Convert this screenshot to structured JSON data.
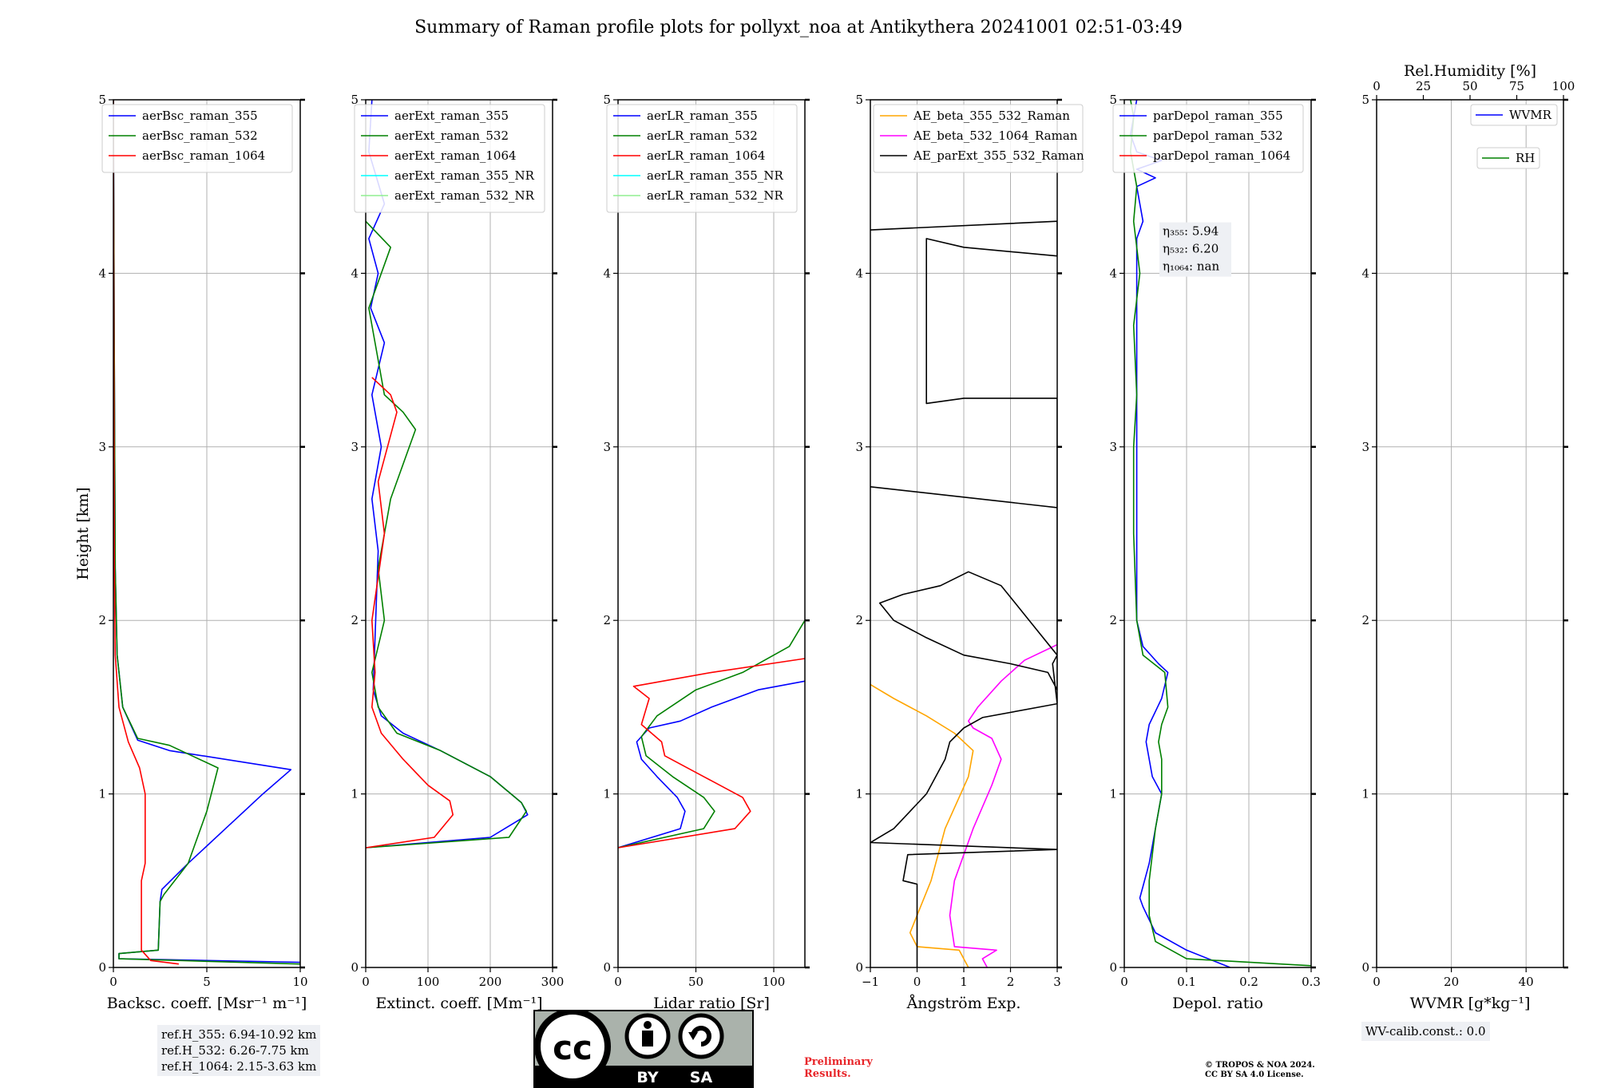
{
  "figure_title": "Summary of Raman profile plots for pollyxt_noa at Antikythera 20241001 02:51-03:49",
  "ref_heights": [
    "ref.H_355: 6.94-10.92 km",
    "ref.H_532: 6.26-7.75 km",
    "ref.H_1064: 2.15-3.63 km"
  ],
  "wv_calib": "WV-calib.const.: 0.0",
  "preliminary": [
    "Preliminary",
    "Results."
  ],
  "copyright": [
    "© TROPOS & NOA 2024.",
    "CC BY SA 4.0 License."
  ],
  "license_badge": {
    "left": "BY",
    "right": "SA",
    "icon": "creative-commons-icon"
  },
  "colors": {
    "blue": "#0000ff",
    "green": "#008000",
    "red": "#ff0000",
    "cyan": "#00ffff",
    "lightgreen": "#90ee90",
    "orange": "#ffa500",
    "magenta": "#ff00ff",
    "black": "#000000"
  },
  "chart_data": [
    {
      "id": "backscatter",
      "type": "line",
      "xlabel": "Backsc. coeff. [Msr⁻¹ m⁻¹]",
      "ylabel": "Height [km]",
      "xlim": [
        0,
        10
      ],
      "ylim": [
        0,
        5
      ],
      "xticks": [
        0,
        5,
        10
      ],
      "yticks": [
        0,
        1,
        2,
        3,
        4,
        5
      ],
      "grid": true,
      "legend": "top-right",
      "series": [
        {
          "name": "aerBsc_raman_355",
          "color": "blue",
          "x": [
            10,
            0.3,
            0.3,
            2.4,
            2.5,
            2.6,
            4,
            6,
            8,
            9.5,
            3,
            1.3,
            0.5,
            0.2,
            0.1,
            0.05,
            0
          ],
          "y": [
            0.03,
            0.05,
            0.08,
            0.1,
            0.38,
            0.45,
            0.6,
            0.8,
            1.0,
            1.14,
            1.25,
            1.31,
            1.5,
            1.8,
            2.3,
            3.5,
            5
          ]
        },
        {
          "name": "aerBsc_raman_532",
          "color": "green",
          "x": [
            10,
            0.3,
            0.3,
            2.4,
            2.5,
            2.7,
            4,
            5,
            5.6,
            3,
            1.3,
            0.5,
            0.2,
            0.1,
            0.05,
            0
          ],
          "y": [
            0.02,
            0.05,
            0.08,
            0.1,
            0.38,
            0.42,
            0.6,
            0.9,
            1.15,
            1.28,
            1.32,
            1.5,
            1.8,
            2.3,
            3.5,
            5
          ]
        },
        {
          "name": "aerBsc_raman_1064",
          "color": "red",
          "x": [
            3.5,
            2,
            1.5,
            1.5,
            1.7,
            1.7,
            1.4,
            0.8,
            0.3,
            0.1,
            0.05,
            0
          ],
          "y": [
            0.02,
            0.04,
            0.1,
            0.5,
            0.6,
            1.0,
            1.15,
            1.3,
            1.5,
            1.8,
            2.3,
            5
          ]
        }
      ]
    },
    {
      "id": "extinction",
      "type": "line",
      "xlabel": "Extinct. coeff. [Mm⁻¹]",
      "xlim": [
        0,
        300
      ],
      "ylim": [
        0,
        5
      ],
      "xticks": [
        0,
        100,
        200,
        300
      ],
      "yticks": [
        0,
        1,
        2,
        3,
        4,
        5
      ],
      "grid": true,
      "legend": "top-right",
      "series": [
        {
          "name": "aerExt_raman_355",
          "color": "blue",
          "x": [
            0,
            200,
            260,
            250,
            200,
            120,
            60,
            25,
            12,
            15,
            20,
            10,
            25,
            10,
            30,
            8,
            20,
            5,
            30,
            5,
            10
          ],
          "y": [
            0.69,
            0.75,
            0.88,
            0.95,
            1.1,
            1.25,
            1.35,
            1.45,
            1.6,
            1.9,
            2.4,
            2.7,
            3.0,
            3.3,
            3.6,
            3.8,
            4.0,
            4.2,
            4.4,
            4.7,
            5.0
          ]
        },
        {
          "name": "aerExt_raman_532",
          "color": "green",
          "x": [
            0,
            230,
            258,
            250,
            200,
            120,
            50,
            20,
            10,
            30,
            20,
            40,
            80,
            60,
            30,
            5,
            40,
            0
          ],
          "y": [
            0.69,
            0.75,
            0.9,
            0.95,
            1.1,
            1.25,
            1.35,
            1.5,
            1.7,
            2.0,
            2.3,
            2.7,
            3.1,
            3.2,
            3.3,
            3.8,
            4.15,
            4.3
          ]
        },
        {
          "name": "aerExt_raman_1064",
          "color": "red",
          "x": [
            0,
            110,
            140,
            135,
            100,
            60,
            25,
            10,
            15,
            10,
            30,
            20,
            50,
            40,
            10
          ],
          "y": [
            0.69,
            0.75,
            0.88,
            0.96,
            1.05,
            1.2,
            1.35,
            1.5,
            1.7,
            2.0,
            2.5,
            2.8,
            3.2,
            3.3,
            3.4
          ]
        },
        {
          "name": "aerExt_raman_355_NR",
          "color": "cyan",
          "x": [],
          "y": []
        },
        {
          "name": "aerExt_raman_532_NR",
          "color": "lightgreen",
          "x": [],
          "y": []
        }
      ]
    },
    {
      "id": "lidar_ratio",
      "type": "line",
      "xlabel": "Lidar ratio [Sr]",
      "xlim": [
        0,
        120
      ],
      "ylim": [
        0,
        5
      ],
      "xticks": [
        0,
        50,
        100
      ],
      "yticks": [
        0,
        1,
        2,
        3,
        4,
        5
      ],
      "grid": true,
      "legend": "top-right",
      "series": [
        {
          "name": "aerLR_raman_355",
          "color": "blue",
          "x": [
            0,
            40,
            43,
            38,
            25,
            15,
            12,
            20,
            40,
            60,
            90,
            120
          ],
          "y": [
            0.69,
            0.8,
            0.9,
            0.98,
            1.1,
            1.2,
            1.3,
            1.38,
            1.42,
            1.5,
            1.6,
            1.65
          ]
        },
        {
          "name": "aerLR_raman_532",
          "color": "green",
          "x": [
            0,
            55,
            62,
            55,
            35,
            18,
            15,
            25,
            50,
            80,
            110,
            120
          ],
          "y": [
            0.69,
            0.8,
            0.9,
            0.98,
            1.1,
            1.22,
            1.33,
            1.45,
            1.6,
            1.7,
            1.85,
            2.0
          ]
        },
        {
          "name": "aerLR_raman_1064",
          "color": "red",
          "x": [
            0,
            75,
            85,
            80,
            55,
            30,
            28,
            15,
            20,
            10,
            60,
            120
          ],
          "y": [
            0.69,
            0.8,
            0.9,
            0.98,
            1.1,
            1.22,
            1.3,
            1.4,
            1.55,
            1.62,
            1.7,
            1.78
          ]
        },
        {
          "name": "aerLR_raman_355_NR",
          "color": "cyan",
          "x": [],
          "y": []
        },
        {
          "name": "aerLR_raman_532_NR",
          "color": "lightgreen",
          "x": [],
          "y": []
        }
      ]
    },
    {
      "id": "angstrom",
      "type": "line",
      "xlabel": "Ångström Exp.",
      "xlim": [
        -1,
        3
      ],
      "ylim": [
        0,
        5
      ],
      "xticks": [
        -1,
        0,
        1,
        2,
        3
      ],
      "yticks": [
        0,
        1,
        2,
        3,
        4,
        5
      ],
      "grid": true,
      "legend": "top-right",
      "series": [
        {
          "name": "AE_beta_355_532_Raman",
          "color": "orange",
          "x": [
            1.1,
            0.9,
            0,
            -0.15,
            0.3,
            0.6,
            1.1,
            1.2,
            0.8,
            0.2,
            -0.5,
            -1
          ],
          "y": [
            0,
            0.1,
            0.12,
            0.2,
            0.5,
            0.8,
            1.1,
            1.25,
            1.35,
            1.45,
            1.55,
            1.63
          ]
        },
        {
          "name": "AE_beta_532_1064_Raman",
          "color": "magenta",
          "x": [
            1.5,
            1.4,
            1.7,
            0.8,
            0.7,
            0.8,
            1.2,
            1.6,
            1.8,
            1.6,
            1.2,
            1.1,
            1.3,
            1.8,
            2.3,
            3
          ],
          "y": [
            0,
            0.05,
            0.1,
            0.12,
            0.3,
            0.5,
            0.8,
            1.05,
            1.2,
            1.32,
            1.38,
            1.42,
            1.5,
            1.65,
            1.77,
            1.86
          ]
        },
        {
          "name": "AE_parExt_355_532_Raman",
          "color": "black",
          "x": [
            0,
            0,
            -0.3,
            -0.2,
            3,
            3,
            -1,
            -0.5,
            0.2,
            0.6,
            0.7,
            1.0,
            1.4,
            3,
            3,
            2.9,
            3,
            2.4,
            1.8,
            1.1,
            0.5,
            -0.3,
            -0.8,
            -0.5,
            0.2,
            1.0,
            2.0,
            2.8,
            3,
            3,
            -1,
            3,
            3,
            1.0,
            0.2,
            0.2,
            1.0,
            3,
            3,
            -1,
            3
          ],
          "y": [
            0,
            0.48,
            0.5,
            0.65,
            0.68,
            0.68,
            0.72,
            0.8,
            1.0,
            1.2,
            1.3,
            1.38,
            1.44,
            1.52,
            1.52,
            1.75,
            1.8,
            2.0,
            2.2,
            2.28,
            2.2,
            2.15,
            2.1,
            2.0,
            1.9,
            1.8,
            1.75,
            1.7,
            1.6,
            2.65,
            2.77,
            2.65,
            3.28,
            3.28,
            3.25,
            4.2,
            4.15,
            4.1,
            4.3,
            4.25,
            4.3
          ]
        }
      ]
    },
    {
      "id": "depolarization",
      "type": "line",
      "xlabel": "Depol. ratio",
      "xlim": [
        0.0,
        0.3
      ],
      "ylim": [
        0,
        5
      ],
      "xticks": [
        0.0,
        0.1,
        0.2,
        0.3
      ],
      "yticks": [
        0,
        1,
        2,
        3,
        4,
        5
      ],
      "grid": true,
      "legend": "top-right",
      "annotation": [
        "η₃₅₅: 5.94",
        "η₅₃₂: 6.20",
        "η₁₀₆₄: nan"
      ],
      "series": [
        {
          "name": "parDepol_raman_355",
          "color": "blue",
          "x": [
            0.17,
            0.1,
            0.05,
            0.03,
            0.025,
            0.04,
            0.05,
            0.06,
            0.045,
            0.035,
            0.04,
            0.06,
            0.07,
            0.055,
            0.03,
            0.02,
            0.02,
            0.02,
            0.02,
            0.02,
            0.02,
            0.03,
            0.02,
            0.05,
            0.02,
            0.06,
            0.02,
            0.01,
            0.02
          ],
          "y": [
            0,
            0.1,
            0.2,
            0.35,
            0.4,
            0.6,
            0.8,
            1.0,
            1.1,
            1.3,
            1.4,
            1.55,
            1.7,
            1.75,
            1.85,
            2.0,
            2.5,
            3.0,
            3.5,
            4.0,
            4.2,
            4.3,
            4.5,
            4.55,
            4.6,
            4.65,
            4.7,
            4.8,
            5.0
          ]
        },
        {
          "name": "parDepol_raman_532",
          "color": "green",
          "x": [
            0.3,
            0.1,
            0.05,
            0.04,
            0.04,
            0.05,
            0.06,
            0.06,
            0.055,
            0.06,
            0.07,
            0.065,
            0.03,
            0.02,
            0.015,
            0.015,
            0.02,
            0.015,
            0.025,
            0.015,
            0.02,
            0.01,
            0.015,
            0.01
          ],
          "y": [
            0.01,
            0.05,
            0.15,
            0.3,
            0.5,
            0.8,
            1.0,
            1.2,
            1.3,
            1.4,
            1.5,
            1.7,
            1.8,
            2.0,
            2.5,
            3.0,
            3.3,
            3.7,
            4.0,
            4.3,
            4.5,
            4.7,
            4.9,
            5.0
          ]
        },
        {
          "name": "parDepol_raman_1064",
          "color": "red",
          "x": [],
          "y": []
        }
      ]
    },
    {
      "id": "water_vapor",
      "type": "line",
      "xlabel": "WVMR [g*kg⁻¹]",
      "top_xlabel": "Rel.Humidity [%]",
      "xlim": [
        0,
        50
      ],
      "ylim": [
        0,
        5
      ],
      "xticks": [
        0,
        20,
        40
      ],
      "top_xticks": [
        0,
        25,
        50,
        75,
        100
      ],
      "yticks": [
        0,
        1,
        2,
        3,
        4,
        5
      ],
      "grid": true,
      "legend": "top-right",
      "series": [
        {
          "name": "WVMR",
          "color": "blue",
          "x": [],
          "y": []
        },
        {
          "name": "RH",
          "color": "green",
          "x": [],
          "y": []
        }
      ]
    }
  ]
}
